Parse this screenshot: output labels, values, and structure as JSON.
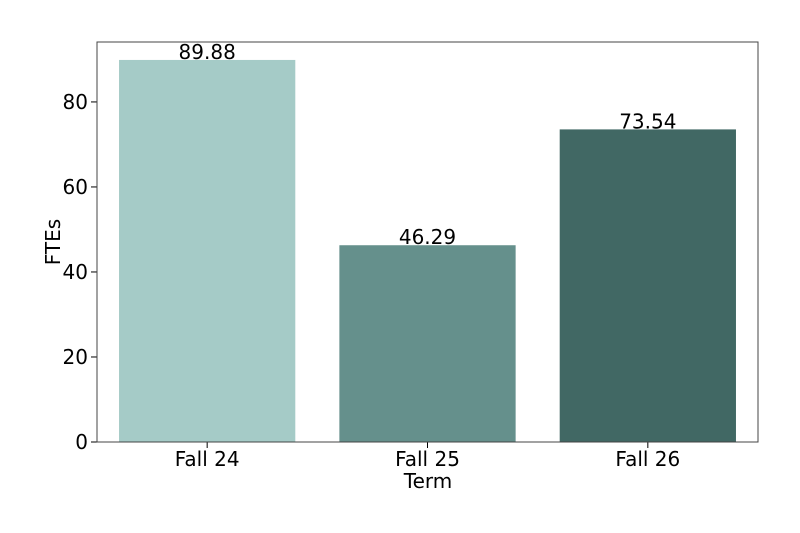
{
  "chart_data": {
    "type": "bar",
    "x_label": "Term",
    "y_label": "FTEs",
    "categories": [
      "Fall 24",
      "Fall 25",
      "Fall 26"
    ],
    "values": [
      89.88,
      46.29,
      73.54
    ],
    "colors": [
      "#a5cbc7",
      "#65908c",
      "#416864"
    ],
    "ylim": [
      0,
      94.1
    ],
    "yticks": [
      0,
      20,
      40,
      60,
      80
    ],
    "grid": false
  }
}
